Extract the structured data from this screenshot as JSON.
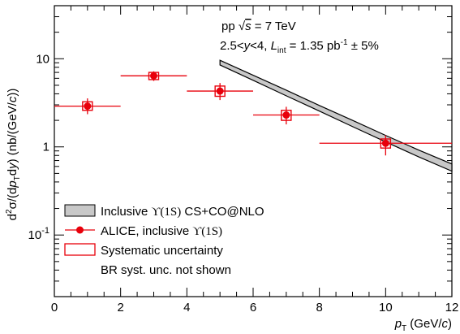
{
  "chart_data": {
    "type": "scatter",
    "annotation_line1_prefix": "pp  ",
    "annotation_line1_sqrt": "√",
    "annotation_line1_s": "s",
    "annotation_line1_suffix": " = 7 TeV",
    "annotation_line2_prefix": "2.5<",
    "annotation_line2_y": "y",
    "annotation_line2_mid": "<4, ",
    "annotation_line2_L": "L",
    "annotation_line2_sub": "int",
    "annotation_line2_eq": " = 1.35 pb",
    "annotation_line2_sup": "-1",
    "annotation_line2_end": " ± 5%",
    "ylabel": "d²σ/(dp_T dy) (nb/(GeV/c))",
    "ylabel_parts": {
      "d1": "d",
      "sup2": "2",
      "sigma": "σ/(d",
      "p": "p",
      "T": "T",
      "dy": "d",
      "y": "y",
      "unit": ") (nb/(GeV/",
      "c": "c",
      "close": "))"
    },
    "xlabel_parts": {
      "p": "p",
      "T": "T",
      "unit": " (GeV/",
      "c": "c",
      "close": ")"
    },
    "xlim": [
      0,
      12
    ],
    "ylim": [
      0.02,
      40
    ],
    "yscale": "log",
    "xticks": [
      0,
      2,
      4,
      6,
      8,
      10,
      12
    ],
    "xtick_labels": [
      "0",
      "2",
      "4",
      "6",
      "8",
      "10",
      "12"
    ],
    "ytick_labels": [
      {
        "value": 10,
        "text": "10"
      },
      {
        "value": 1,
        "text": "1"
      },
      {
        "value": 0.1,
        "base": "10",
        "exp": "-1"
      }
    ],
    "series": [
      {
        "name": "ALICE, inclusive ϒ(1S)",
        "color": "#e8000b",
        "points": [
          {
            "x": 1,
            "xlo": 0,
            "xhi": 2,
            "y": 2.9,
            "ylo": 2.35,
            "yhi": 3.55,
            "syst_lo": 2.6,
            "syst_hi": 3.25
          },
          {
            "x": 3,
            "xlo": 2,
            "xhi": 4,
            "y": 6.4,
            "ylo": 5.6,
            "yhi": 7.2,
            "syst_lo": 5.8,
            "syst_hi": 7.0
          },
          {
            "x": 5,
            "xlo": 4,
            "xhi": 6,
            "y": 4.3,
            "ylo": 3.4,
            "yhi": 5.3,
            "syst_lo": 3.75,
            "syst_hi": 4.9
          },
          {
            "x": 7,
            "xlo": 6,
            "xhi": 8,
            "y": 2.3,
            "ylo": 1.8,
            "yhi": 2.85,
            "syst_lo": 2.0,
            "syst_hi": 2.6
          },
          {
            "x": 10,
            "xlo": 8,
            "xhi": 12,
            "y": 1.1,
            "ylo": 0.8,
            "yhi": 1.35,
            "syst_lo": 0.97,
            "syst_hi": 1.23
          }
        ]
      }
    ],
    "theory_band": {
      "name": "Inclusive ϒ(1S) CS+CO@NLO",
      "fill": "#c8c8c8",
      "x": [
        5,
        6,
        7,
        8,
        9,
        10,
        11,
        12
      ],
      "upper": [
        9.6,
        6.5,
        4.4,
        2.95,
        2.0,
        1.35,
        0.92,
        0.64
      ],
      "lower": [
        8.5,
        5.7,
        3.8,
        2.55,
        1.7,
        1.14,
        0.77,
        0.53
      ]
    },
    "legend": {
      "position": "bottom-left",
      "entries": [
        {
          "kind": "band",
          "label_pre": "Inclusive ",
          "label_upsilon": "ϒ(1S)",
          "label_post": " CS+CO@NLO"
        },
        {
          "kind": "marker",
          "label_pre": "ALICE, inclusive ",
          "label_upsilon": "ϒ(1S)",
          "label_post": ""
        },
        {
          "kind": "box",
          "label_pre": "Systematic uncertainty",
          "label_upsilon": "",
          "label_post": ""
        },
        {
          "kind": "none",
          "label_pre": "BR syst. unc. not shown",
          "label_upsilon": "",
          "label_post": ""
        }
      ]
    }
  }
}
